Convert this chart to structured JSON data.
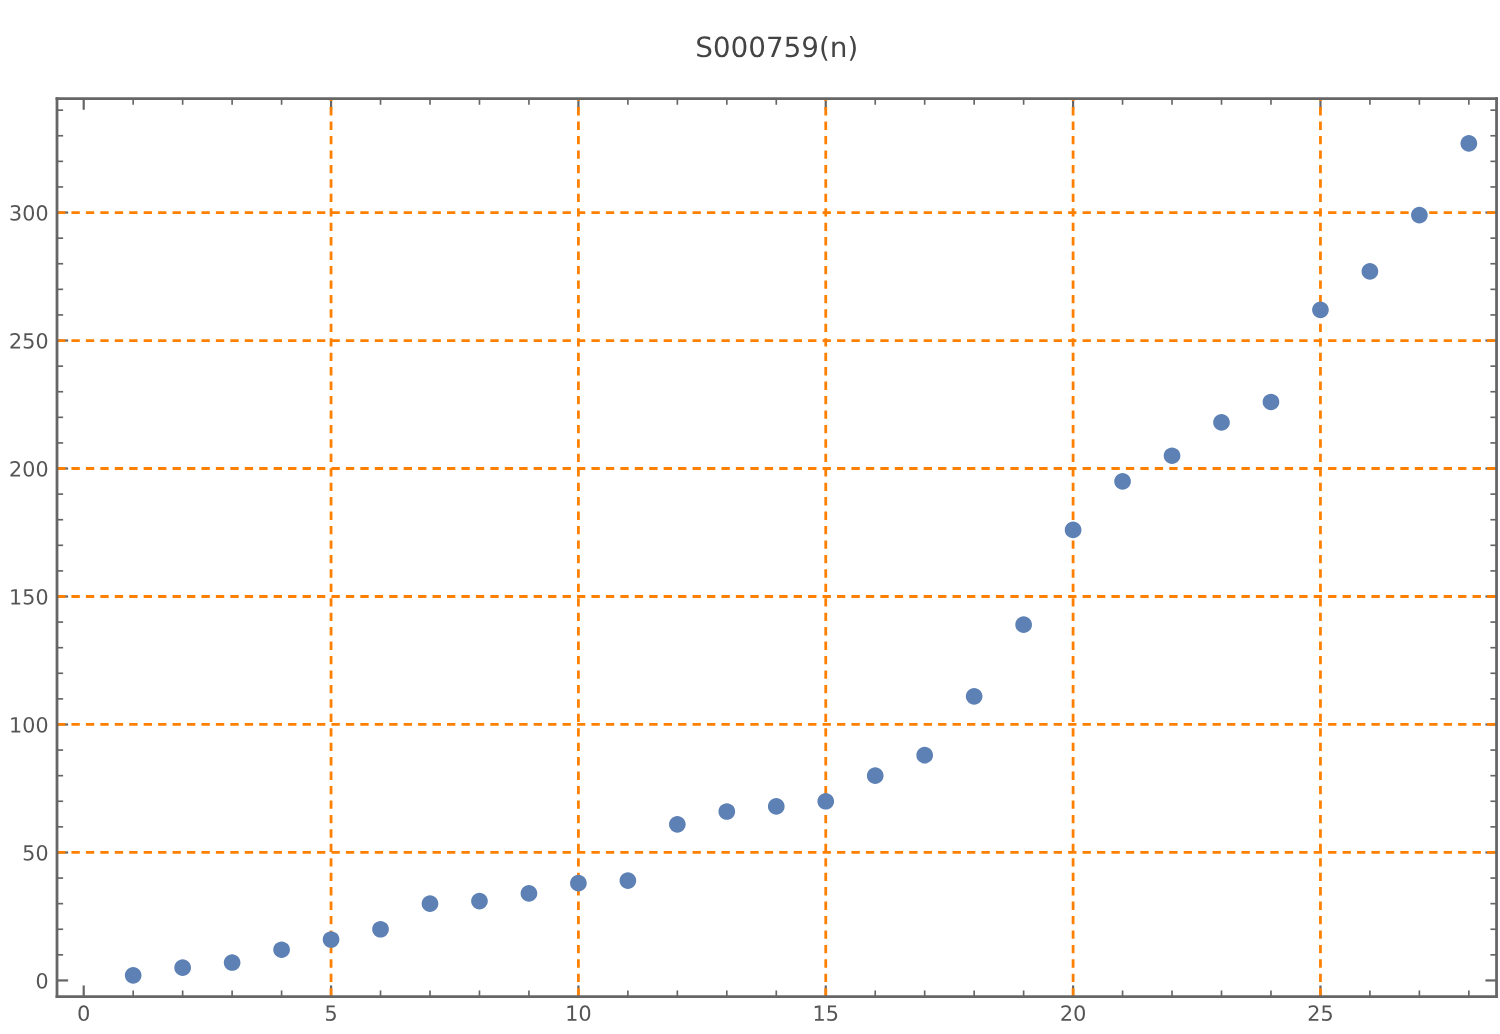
{
  "chart_data": {
    "type": "scatter",
    "title": "S000759(n)",
    "x": [
      1,
      2,
      3,
      4,
      5,
      6,
      7,
      8,
      9,
      10,
      11,
      12,
      13,
      14,
      15,
      16,
      17,
      18,
      19,
      20,
      21,
      22,
      23,
      24,
      25,
      26,
      27,
      28
    ],
    "series": [
      {
        "color": "#5e81b5",
        "values": [
          2,
          5,
          7,
          12,
          16,
          20,
          30,
          31,
          34,
          38,
          39,
          61,
          66,
          68,
          70,
          80,
          88,
          111,
          139,
          176,
          195,
          205,
          218,
          226,
          262,
          277,
          299,
          327
        ]
      }
    ],
    "xlim": [
      -0.54,
      28.56
    ],
    "ylim": [
      -6.3,
      344.5
    ],
    "xticks": [
      0,
      5,
      10,
      15,
      20,
      25
    ],
    "yticks": [
      0,
      50,
      100,
      150,
      200,
      250,
      300
    ],
    "marker": "circle",
    "ref_lines": [
      {
        "axis": "x",
        "value": 5,
        "color": "#ff8000",
        "line_style": "dashed"
      },
      {
        "axis": "x",
        "value": 10,
        "color": "#ff8000",
        "line_style": "dashed"
      },
      {
        "axis": "x",
        "value": 15,
        "color": "#ff8000",
        "line_style": "dashed"
      },
      {
        "axis": "x",
        "value": 20,
        "color": "#ff8000",
        "line_style": "dashed"
      },
      {
        "axis": "x",
        "value": 25,
        "color": "#ff8000",
        "line_style": "dashed"
      },
      {
        "axis": "y",
        "value": 50,
        "color": "#ff8000",
        "line_style": "dashed"
      },
      {
        "axis": "y",
        "value": 100,
        "color": "#ff8000",
        "line_style": "dashed"
      },
      {
        "axis": "y",
        "value": 150,
        "color": "#ff8000",
        "line_style": "dashed"
      },
      {
        "axis": "y",
        "value": 200,
        "color": "#ff8000",
        "line_style": "dashed"
      },
      {
        "axis": "y",
        "value": 250,
        "color": "#ff8000",
        "line_style": "dashed"
      },
      {
        "axis": "y",
        "value": 300,
        "color": "#ff8000",
        "line_style": "dashed"
      }
    ]
  }
}
